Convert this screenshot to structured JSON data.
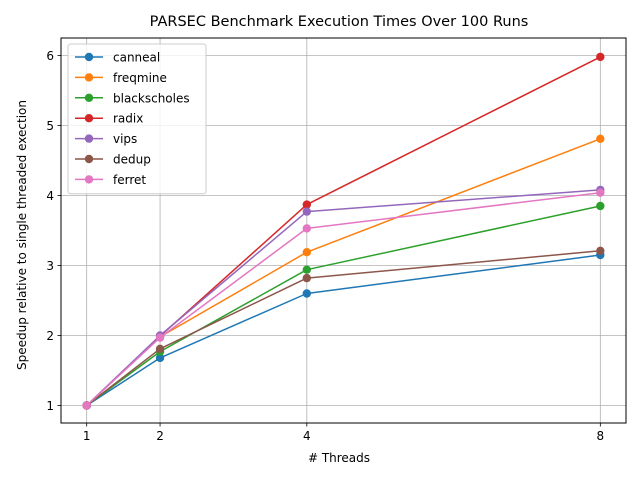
{
  "chart_data": {
    "type": "line",
    "title": "PARSEC Benchmark Execution Times Over 100 Runs",
    "xlabel": "# Threads",
    "ylabel": "Speedup relative to single threaded exection",
    "x": [
      1,
      2,
      4,
      8
    ],
    "xticks": [
      1,
      2,
      4,
      8
    ],
    "yticks": [
      1,
      2,
      3,
      4,
      5,
      6
    ],
    "xlim": [
      0.65,
      8.35
    ],
    "ylim": [
      0.75,
      6.25
    ],
    "grid": true,
    "legend_position": "top-left",
    "series": [
      {
        "name": "canneal",
        "color": "#1f77b4",
        "values": [
          1,
          1.68,
          2.6,
          3.15
        ]
      },
      {
        "name": "freqmine",
        "color": "#ff7f0e",
        "values": [
          1,
          1.98,
          3.19,
          4.81
        ]
      },
      {
        "name": "blackscholes",
        "color": "#2ca02c",
        "values": [
          1,
          1.77,
          2.94,
          3.85
        ]
      },
      {
        "name": "radix",
        "color": "#d62728",
        "values": [
          1,
          1.99,
          3.87,
          5.98
        ]
      },
      {
        "name": "vips",
        "color": "#9467bd",
        "values": [
          1,
          2.0,
          3.77,
          4.08
        ]
      },
      {
        "name": "dedup",
        "color": "#8c564b",
        "values": [
          1,
          1.81,
          2.82,
          3.21
        ]
      },
      {
        "name": "ferret",
        "color": "#e377c2",
        "values": [
          1,
          1.97,
          3.53,
          4.04
        ]
      }
    ]
  }
}
